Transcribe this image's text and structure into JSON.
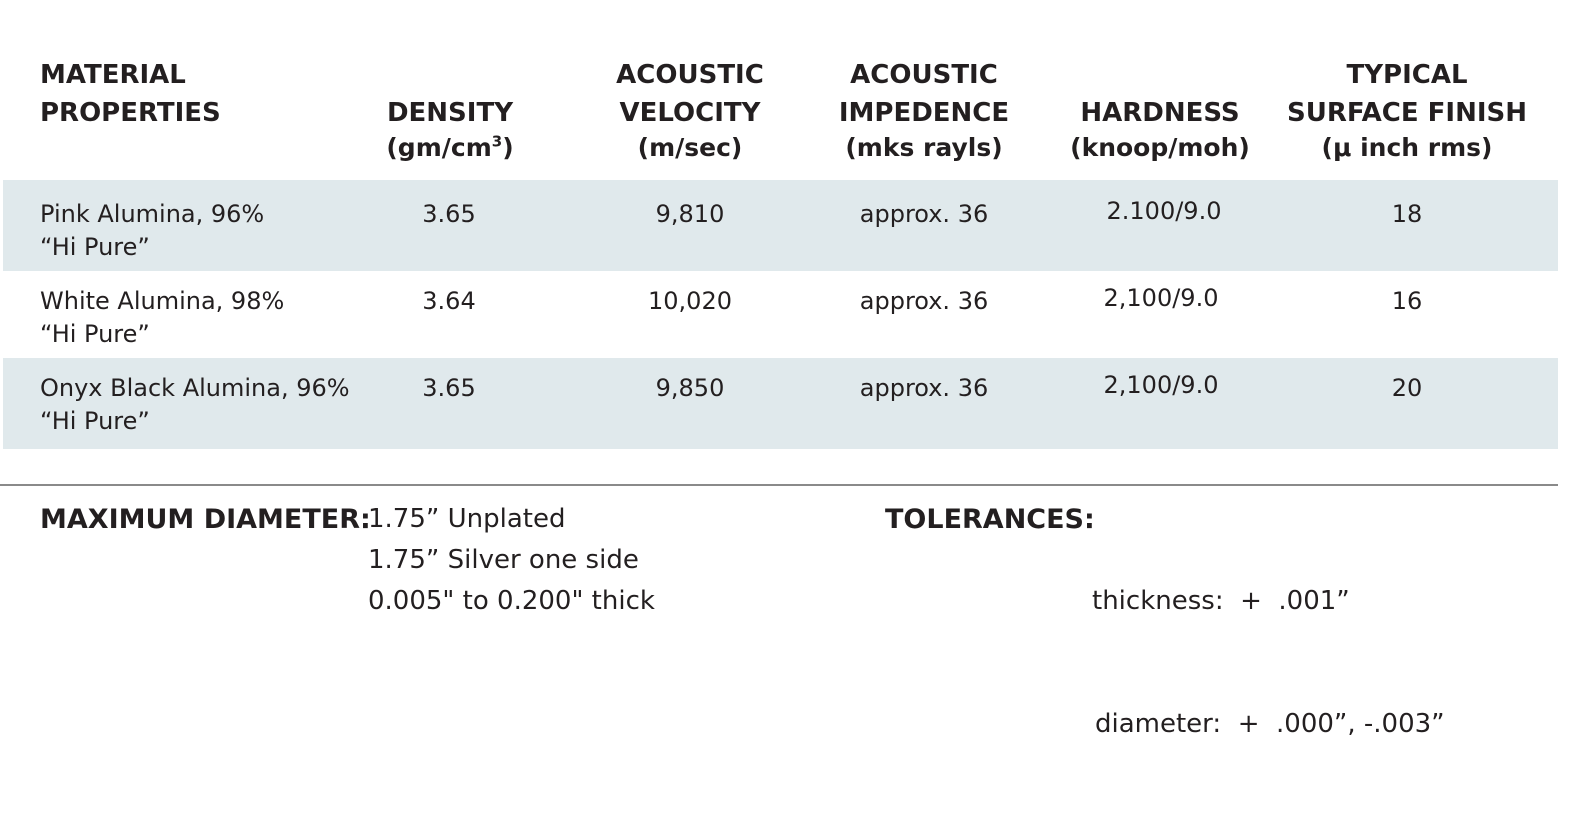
{
  "table": {
    "headers": {
      "material": [
        "MATERIAL",
        "PROPERTIES"
      ],
      "density": {
        "title": [
          "DENSITY"
        ],
        "unit_base": "(gm/cm",
        "unit_sup": "3",
        "unit_end": ")"
      },
      "velocity": {
        "title": [
          "ACOUSTIC",
          "VELOCITY"
        ],
        "unit": "(m/sec)"
      },
      "impedence": {
        "title": [
          "ACOUSTIC",
          "IMPEDENCE"
        ],
        "unit": "(mks rayls)"
      },
      "hardness": {
        "title": [
          "HARDNESS"
        ],
        "unit": "(knoop/moh)"
      },
      "finish": {
        "title": [
          "TYPICAL",
          "SURFACE FINISH"
        ],
        "unit": "(μ inch rms)"
      }
    },
    "rows": [
      {
        "material": [
          "Pink Alumina, 96%",
          "“Hi Pure”"
        ],
        "density": "3.65",
        "velocity": "9,810",
        "impedence": "approx. 36",
        "hardness": "2.100/9.0",
        "finish": "18"
      },
      {
        "material": [
          "White Alumina, 98%",
          "“Hi Pure”"
        ],
        "density": "3.64",
        "velocity": "10,020",
        "impedence": "approx. 36",
        "hardness": "2,100/9.0",
        "finish": "16"
      },
      {
        "material": [
          "Onyx Black Alumina, 96%",
          "“Hi Pure”"
        ],
        "density": "3.65",
        "velocity": "9,850",
        "impedence": "approx. 36",
        "hardness": "2,100/9.0",
        "finish": "20"
      }
    ],
    "row_shade_color": "#e0e9ec"
  },
  "specs": {
    "max_diameter": {
      "label": "MAXIMUM DIAMETER:",
      "values": [
        "1.75” Unplated",
        "1.75” Silver one side",
        "0.005\" to 0.200\" thick"
      ]
    },
    "tolerances": {
      "label": "TOLERANCES:",
      "values": [
        "thickness:  +  .001”",
        "diameter:  +  .000”, -.003”"
      ]
    }
  }
}
